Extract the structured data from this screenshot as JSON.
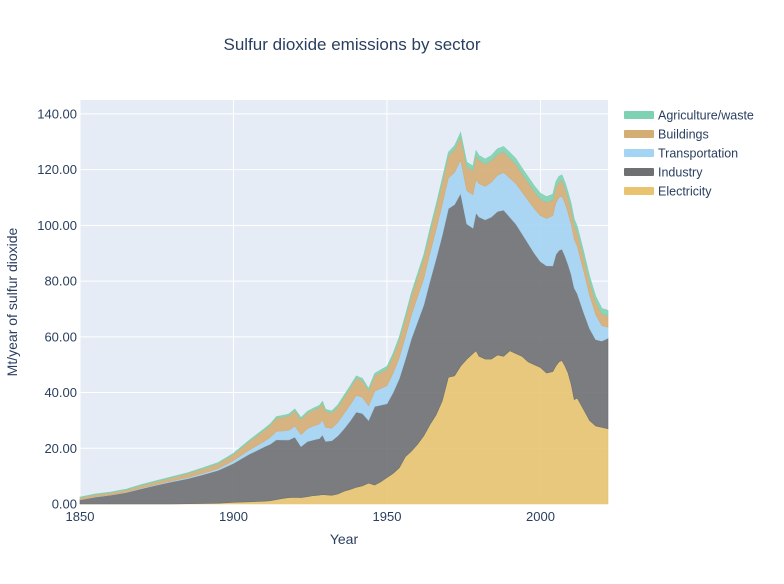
{
  "chart_data": {
    "type": "area",
    "stacked": true,
    "title": "Sulfur dioxide emissions by sector",
    "xlabel": "Year",
    "ylabel": "Mt/year of sulfur dioxide",
    "xlim": [
      1850,
      2022
    ],
    "ylim": [
      0,
      145
    ],
    "x_ticks": [
      1850,
      1900,
      1950,
      2000
    ],
    "x_tick_labels": [
      "1850",
      "1900",
      "1950",
      "2000"
    ],
    "y_ticks": [
      0,
      20,
      40,
      60,
      80,
      100,
      120,
      140
    ],
    "y_tick_labels": [
      "0.00",
      "20.00",
      "40.00",
      "60.00",
      "80.00",
      "100.00",
      "120.00",
      "140.00"
    ],
    "grid": true,
    "legend_position": "right",
    "plot_background": "#e5ecf6",
    "x": [
      1850,
      1855,
      1860,
      1865,
      1870,
      1875,
      1880,
      1885,
      1890,
      1895,
      1900,
      1905,
      1910,
      1912,
      1914,
      1916,
      1918,
      1920,
      1922,
      1924,
      1926,
      1928,
      1929,
      1930,
      1932,
      1934,
      1936,
      1938,
      1940,
      1942,
      1944,
      1946,
      1948,
      1950,
      1952,
      1954,
      1956,
      1958,
      1960,
      1962,
      1964,
      1966,
      1968,
      1970,
      1972,
      1974,
      1976,
      1978,
      1979,
      1980,
      1982,
      1984,
      1986,
      1988,
      1990,
      1992,
      1994,
      1996,
      1998,
      2000,
      2002,
      2004,
      2005,
      2006,
      2007,
      2008,
      2009,
      2010,
      2011,
      2012,
      2014,
      2016,
      2018,
      2020,
      2022
    ],
    "series": [
      {
        "name": "Electricity",
        "color": "#e8c470",
        "values": [
          0,
          0,
          0,
          0,
          0,
          0,
          0,
          0.1,
          0.2,
          0.3,
          0.6,
          0.8,
          1.0,
          1.2,
          1.6,
          2.0,
          2.3,
          2.4,
          2.3,
          2.6,
          3.0,
          3.2,
          3.4,
          3.3,
          3.1,
          3.6,
          4.6,
          5.2,
          6.0,
          6.5,
          7.5,
          6.8,
          8.0,
          9.5,
          11.0,
          13.0,
          17.0,
          19.0,
          21.5,
          24.5,
          28.5,
          32.0,
          37.0,
          45.5,
          46.0,
          49.5,
          52.0,
          54.0,
          55.0,
          53.0,
          52.0,
          52.0,
          53.5,
          53.0,
          55.0,
          54.0,
          53.0,
          51.0,
          50.0,
          49.0,
          47.0,
          47.5,
          49.5,
          51.0,
          51.5,
          49.5,
          47.0,
          43.0,
          37.5,
          38.0,
          34.0,
          30.0,
          28.0,
          27.5,
          27.0
        ]
      },
      {
        "name": "Industry",
        "color": "#6e7072",
        "values": [
          1.5,
          2.5,
          3.2,
          4.1,
          5.5,
          6.8,
          8.0,
          9.0,
          10.3,
          11.8,
          14.0,
          17.0,
          19.5,
          20.3,
          21.5,
          21.0,
          20.7,
          21.6,
          18.3,
          19.8,
          20.0,
          20.3,
          21.4,
          19.2,
          19.6,
          20.9,
          22.4,
          24.6,
          27.0,
          26.0,
          22.5,
          28.2,
          27.5,
          26.5,
          29.0,
          32.0,
          35.0,
          40.5,
          44.0,
          47.0,
          51.5,
          56.0,
          59.5,
          60.5,
          61.5,
          62.0,
          48.5,
          45.0,
          49.5,
          50.0,
          50.0,
          51.0,
          51.5,
          52.5,
          48.0,
          46.5,
          44.0,
          42.5,
          40.0,
          38.0,
          38.5,
          38.0,
          40.0,
          40.0,
          40.0,
          39.5,
          39.0,
          39.5,
          40.0,
          37.5,
          35.0,
          33.0,
          31.0,
          31.0,
          32.5
        ]
      },
      {
        "name": "Transportation",
        "color": "#a4d4f3",
        "values": [
          0,
          0.1,
          0.1,
          0.1,
          0.2,
          0.2,
          0.3,
          0.4,
          0.5,
          0.6,
          1.0,
          1.5,
          2.0,
          2.5,
          3.0,
          3.2,
          3.5,
          4.0,
          4.3,
          4.6,
          5.0,
          5.2,
          5.4,
          5.0,
          4.5,
          4.8,
          5.5,
          5.8,
          6.0,
          5.8,
          5.2,
          5.5,
          6.0,
          6.5,
          7.0,
          7.5,
          8.0,
          8.5,
          9.0,
          9.5,
          10.0,
          10.5,
          11.0,
          11.0,
          11.5,
          12.0,
          12.0,
          12.0,
          12.0,
          12.0,
          12.0,
          12.5,
          13.0,
          13.5,
          14.0,
          14.5,
          15.0,
          15.5,
          16.0,
          16.5,
          17.0,
          18.0,
          18.5,
          19.0,
          19.0,
          19.0,
          18.5,
          18.0,
          17.5,
          17.0,
          15.0,
          12.0,
          9.0,
          5.5,
          4.0
        ]
      },
      {
        "name": "Buildings",
        "color": "#d4ad74",
        "values": [
          0.8,
          0.8,
          0.8,
          0.9,
          1.0,
          1.1,
          1.2,
          1.4,
          1.6,
          1.8,
          2.2,
          3.0,
          4.0,
          4.3,
          4.8,
          5.0,
          5.2,
          5.5,
          5.5,
          5.6,
          5.8,
          6.0,
          6.0,
          5.8,
          5.5,
          5.6,
          5.8,
          6.0,
          6.2,
          6.0,
          5.5,
          5.6,
          5.8,
          6.0,
          6.2,
          6.5,
          6.8,
          7.0,
          7.2,
          7.4,
          7.6,
          7.8,
          8.0,
          8.0,
          8.2,
          8.4,
          8.6,
          8.6,
          8.6,
          8.4,
          8.0,
          7.8,
          7.6,
          7.4,
          7.2,
          7.0,
          6.6,
          6.4,
          6.2,
          6.0,
          5.8,
          5.7,
          5.6,
          5.6,
          5.6,
          5.5,
          5.4,
          5.4,
          5.3,
          5.2,
          5.0,
          4.8,
          4.6,
          4.2,
          4.0
        ]
      },
      {
        "name": "Agriculture/waste",
        "color": "#7fd1b4",
        "values": [
          0.2,
          0.2,
          0.2,
          0.2,
          0.3,
          0.3,
          0.3,
          0.3,
          0.4,
          0.4,
          0.4,
          0.5,
          0.5,
          0.5,
          0.5,
          0.6,
          0.6,
          0.6,
          0.6,
          0.6,
          0.6,
          0.7,
          0.7,
          0.7,
          0.7,
          0.7,
          0.7,
          0.8,
          0.8,
          0.8,
          0.8,
          0.8,
          0.9,
          0.9,
          0.9,
          1.0,
          1.0,
          1.0,
          1.1,
          1.1,
          1.2,
          1.2,
          1.3,
          1.3,
          1.4,
          1.5,
          1.6,
          1.7,
          1.7,
          1.7,
          1.8,
          1.8,
          1.9,
          1.9,
          2.0,
          2.0,
          2.0,
          2.0,
          2.0,
          2.0,
          2.0,
          2.0,
          2.0,
          2.0,
          2.0,
          2.0,
          2.0,
          2.0,
          2.0,
          2.0,
          2.0,
          2.0,
          2.0,
          2.0,
          2.0
        ]
      }
    ]
  }
}
